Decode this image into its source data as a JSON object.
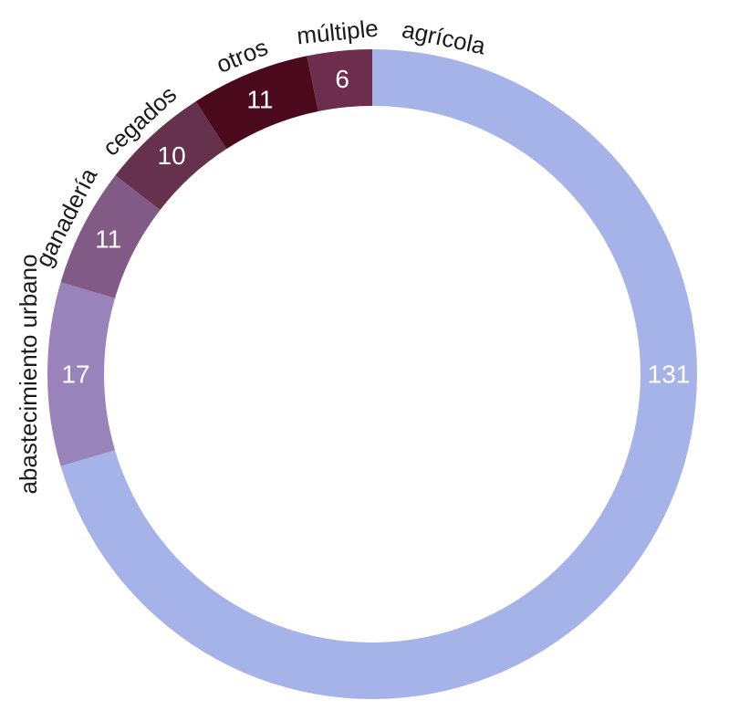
{
  "chart_data": {
    "type": "pie",
    "variant": "donut",
    "title": "",
    "start": "top, clockwise",
    "slices": [
      {
        "label": "agrícola",
        "value": 131,
        "color": "#a6b3e8"
      },
      {
        "label": "abastecimiento urbano",
        "value": 17,
        "color": "#9883ba"
      },
      {
        "label": "ganadería",
        "value": 11,
        "color": "#815a86"
      },
      {
        "label": "cegados",
        "value": 10,
        "color": "#65314d"
      },
      {
        "label": "otros",
        "value": 11,
        "color": "#4a0a1b"
      },
      {
        "label": "múltiple",
        "value": 6,
        "color": "#6d2d4d"
      }
    ],
    "value_label_color": "#ffffff",
    "legend": "none"
  }
}
